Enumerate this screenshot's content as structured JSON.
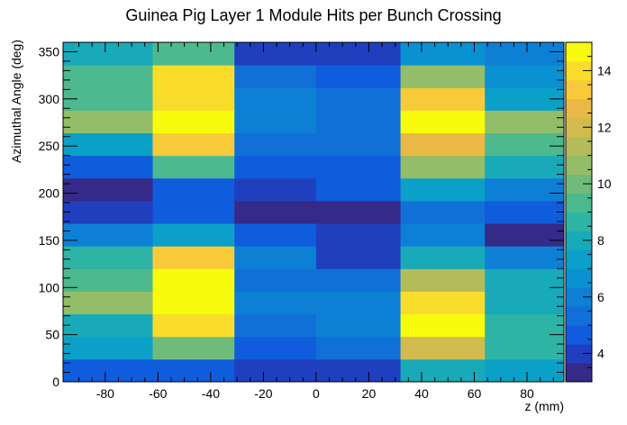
{
  "chart_data": {
    "type": "heatmap",
    "title": "Guinea Pig Layer 1 Module Hits per Bunch Crossing",
    "xlabel": "z (mm)",
    "ylabel": "Azimuthal Angle (deg)",
    "x_edges": [
      -96,
      -62,
      -31,
      0,
      32,
      64,
      94
    ],
    "y_edges": [
      0,
      24,
      48,
      72,
      96,
      120,
      144,
      168,
      192,
      216,
      240,
      264,
      288,
      312,
      336,
      360
    ],
    "xlim": [
      -96,
      94
    ],
    "ylim": [
      0,
      360
    ],
    "x_ticks": [
      -80,
      -60,
      -40,
      -20,
      0,
      20,
      40,
      60,
      80
    ],
    "y_ticks": [
      0,
      50,
      100,
      150,
      200,
      250,
      300,
      350
    ],
    "z_range": [
      3,
      15
    ],
    "colorbar_ticks": [
      4,
      6,
      8,
      10,
      12,
      14
    ],
    "palette": [
      "#352a87",
      "#1f3fbf",
      "#0f5cdd",
      "#1170d8",
      "#0d80d6",
      "#0a91d2",
      "#0ba0c7",
      "#18aab8",
      "#2eb4a5",
      "#4db98e",
      "#6fbc7a",
      "#93bd68",
      "#b4bc5a",
      "#d1ba4e",
      "#eab945",
      "#f8ca3a",
      "#f9dd2a",
      "#f9fb0e"
    ],
    "values": [
      [
        4.4,
        4.4,
        3.8,
        3.8,
        8.1,
        7.5
      ],
      [
        7.3,
        10.2,
        4.5,
        5.2,
        12.0,
        8.5
      ],
      [
        8.3,
        13.8,
        5.3,
        5.8,
        14.4,
        8.5
      ],
      [
        10.9,
        15.0,
        5.7,
        5.9,
        13.9,
        7.8
      ],
      [
        9.5,
        15.0,
        5.4,
        5.3,
        11.5,
        7.7
      ],
      [
        8.9,
        13.1,
        6.0,
        3.8,
        8.2,
        5.8
      ],
      [
        6.3,
        7.6,
        4.6,
        3.9,
        6.1,
        3.1
      ],
      [
        4.2,
        4.7,
        3.2,
        3.2,
        5.4,
        4.6
      ],
      [
        3.3,
        4.8,
        3.9,
        4.7,
        7.5,
        6.1
      ],
      [
        4.6,
        9.4,
        4.8,
        4.9,
        10.6,
        8.0
      ],
      [
        7.6,
        13.3,
        5.4,
        5.5,
        12.6,
        9.0
      ],
      [
        10.5,
        14.9,
        5.8,
        5.6,
        14.9,
        10.9
      ],
      [
        9.6,
        13.9,
        5.9,
        5.5,
        13.1,
        7.6
      ],
      [
        9.3,
        13.9,
        5.6,
        4.6,
        10.5,
        6.5
      ],
      [
        7.9,
        9.3,
        4.0,
        4.0,
        6.5,
        5.9
      ]
    ]
  }
}
